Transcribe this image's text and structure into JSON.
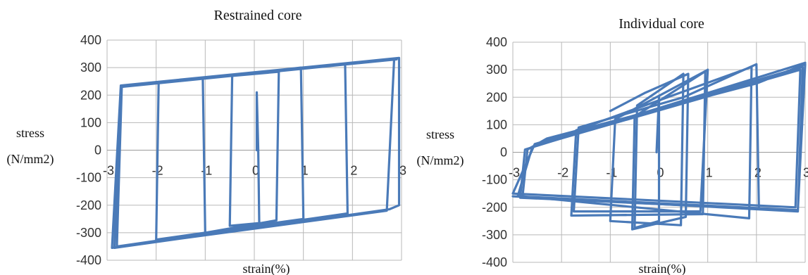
{
  "chart_data": [
    {
      "type": "line",
      "title": "Restrained core",
      "xlabel": "strain(%)",
      "ylabel": [
        "stress",
        "(N/mm2)"
      ],
      "xlim": [
        -3,
        3
      ],
      "ylim": [
        -400,
        400
      ],
      "xticks": [
        "-3",
        "-2",
        "-1",
        "0",
        "1",
        "2",
        "3"
      ],
      "yticks": [
        "400",
        "300",
        "200",
        "100",
        "0",
        "-100",
        "-200",
        "-300",
        "-400"
      ],
      "grid": true,
      "line_color": "#4a7ab8",
      "series": [
        {
          "points": [
            [
              0.05,
              0
            ],
            [
              0.05,
              210
            ],
            [
              0.08,
              0
            ],
            [
              0.1,
              -265
            ],
            [
              -0.5,
              -275
            ],
            [
              -0.45,
              270
            ],
            [
              0.5,
              285
            ],
            [
              0.45,
              -255
            ],
            [
              -1.0,
              -300
            ],
            [
              -1.05,
              260
            ],
            [
              0.95,
              300
            ],
            [
              1.0,
              -250
            ],
            [
              -2.0,
              -325
            ],
            [
              -1.95,
              245
            ],
            [
              1.85,
              315
            ],
            [
              1.9,
              -230
            ],
            [
              -2.8,
              -350
            ],
            [
              -2.7,
              235
            ],
            [
              2.85,
              330
            ],
            [
              2.7,
              -220
            ],
            [
              -2.9,
              -355
            ],
            [
              -2.72,
              235
            ],
            [
              2.95,
              335
            ],
            [
              2.95,
              -200
            ],
            [
              2.75,
              -215
            ],
            [
              -2.85,
              -355
            ],
            [
              -2.7,
              230
            ],
            [
              2.9,
              330
            ]
          ]
        }
      ]
    },
    {
      "type": "line",
      "title": "Individual core",
      "xlabel": "strain(%)",
      "ylabel": [
        "stress",
        "(N/mm2)"
      ],
      "xlim": [
        -3,
        3
      ],
      "ylim": [
        -400,
        400
      ],
      "xticks": [
        "-3",
        "-2",
        "-1",
        "0",
        "1",
        "2",
        "3"
      ],
      "yticks": [
        "400",
        "300",
        "200",
        "100",
        "0",
        "-100",
        "-200",
        "-300",
        "-400"
      ],
      "grid": true,
      "line_color": "#4a7ab8",
      "series": [
        {
          "points": [
            [
              -0.05,
              0
            ],
            [
              0.0,
              205
            ],
            [
              0.0,
              -250
            ],
            [
              -0.5,
              -275
            ],
            [
              -0.45,
              170
            ],
            [
              0.5,
              285
            ],
            [
              0.45,
              -265
            ],
            [
              -1.0,
              -250
            ],
            [
              -0.9,
              120
            ],
            [
              0.95,
              295
            ],
            [
              0.9,
              -225
            ],
            [
              -1.8,
              -230
            ],
            [
              -1.7,
              80
            ],
            [
              1.9,
              310
            ],
            [
              1.85,
              -240
            ],
            [
              -2.8,
              -160
            ],
            [
              -2.7,
              10
            ],
            [
              -2.3,
              50
            ],
            [
              2.0,
              250
            ],
            [
              3.0,
              320
            ],
            [
              2.85,
              -210
            ],
            [
              -2.9,
              -160
            ],
            [
              -2.6,
              20
            ],
            [
              2.9,
              300
            ],
            [
              2.8,
              -200
            ],
            [
              -3.0,
              -150
            ],
            [
              -2.55,
              30
            ],
            [
              2.95,
              310
            ],
            [
              2.85,
              -215
            ],
            [
              -3.0,
              -160
            ]
          ]
        },
        {
          "points": [
            [
              -1.0,
              150
            ],
            [
              -0.3,
              215
            ],
            [
              0.6,
              285
            ],
            [
              0.55,
              -235
            ],
            [
              -0.55,
              -280
            ],
            [
              -0.5,
              130
            ],
            [
              1.0,
              300
            ],
            [
              0.85,
              -215
            ],
            [
              -1.75,
              -215
            ],
            [
              -1.65,
              90
            ],
            [
              0.5,
              200
            ],
            [
              2.0,
              320
            ],
            [
              2.05,
              -205
            ],
            [
              -2.85,
              -165
            ],
            [
              -2.75,
              10
            ],
            [
              3.0,
              325
            ]
          ]
        }
      ]
    }
  ]
}
